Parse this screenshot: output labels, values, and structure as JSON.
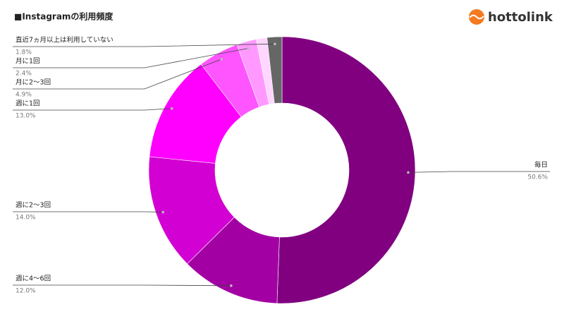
{
  "logo": "hottolink",
  "chart_data": {
    "type": "donut",
    "title": "■Instagramの利用頻度",
    "categories": [
      "毎日",
      "週に4～6回",
      "週に2～3回",
      "週に1回",
      "月に2～3回",
      "月に1回",
      null,
      "直近7ヵ月以上は利用していない"
    ],
    "values": [
      50.6,
      12.0,
      14.0,
      13.0,
      4.9,
      2.4,
      1.3,
      1.8
    ],
    "value_labels": [
      "50.6%",
      "12.0%",
      "14.0%",
      "13.0%",
      "4.9%",
      "2.4%",
      null,
      "1.8%"
    ],
    "colors": [
      "#800080",
      "#a300a3",
      "#d200d2",
      "#ff00ff",
      "#ff55ff",
      "#ff99ff",
      "#ffd6ff",
      "#666666"
    ]
  }
}
